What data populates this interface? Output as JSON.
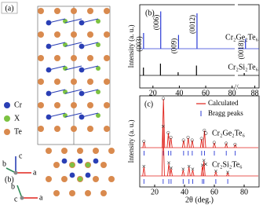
{
  "panel_a": {
    "label": "(a)",
    "legend": [
      {
        "label": "Cr",
        "color": "#2a3fb5"
      },
      {
        "label": "X",
        "color": "#7cc242"
      },
      {
        "label": "Te",
        "color": "#d98a4e"
      }
    ],
    "axes": {
      "c": "c",
      "b": "b",
      "a": "a"
    }
  },
  "panel_b_structure": {
    "label": "(b)",
    "axes": {
      "b": "b",
      "c": "c",
      "a": "a"
    }
  },
  "chart_b": {
    "type": "xrd-stack",
    "label": "(b)",
    "y_label": "Intensity (a. u.)",
    "segments": [
      {
        "xlim": [
          10,
          82
        ],
        "xticks": [
          20,
          40,
          60,
          80
        ]
      },
      {
        "xlim": [
          80,
          90
        ],
        "xticks": [
          88
        ]
      }
    ],
    "series": [
      {
        "name": "Cr₂Ge₂Te₆",
        "color": "#2b3bd6",
        "x": [
          12.9,
          25.9,
          39.4,
          53.4,
          83.6
        ],
        "values": [
          40,
          95,
          35,
          90,
          25
        ],
        "peak_labels": [
          "(003)",
          "(006)",
          "(009)",
          "(0012)",
          "(0018)"
        ]
      },
      {
        "name": "Cr₂Si₂Te₆",
        "color": "#000000",
        "x": [
          12.8,
          25.7,
          39.1,
          53.0,
          83.0
        ],
        "values": [
          20,
          30,
          8,
          25,
          6
        ]
      }
    ]
  },
  "chart_c": {
    "type": "refinement",
    "label": "(c)",
    "y_label": "Intensity (a. u.)",
    "x_label": "2θ (deg.)",
    "xlim": [
      10,
      90
    ],
    "xticks": [
      20,
      40,
      60,
      80
    ],
    "calc_label": "Calculated",
    "calc_color": "#e0231c",
    "bragg_label": "Bragg peaks",
    "bragg_color": "#2b3bd6",
    "series": [
      {
        "name": "Cr₂Ge₂Te₆",
        "marker": "○",
        "x": [
          12.9,
          25.9,
          29.2,
          30.9,
          39.4,
          42.5,
          45.2,
          51.5,
          53.4,
          60,
          68,
          74
        ],
        "values": [
          12,
          100,
          30,
          20,
          15,
          20,
          15,
          18,
          35,
          10,
          8,
          6
        ]
      },
      {
        "name": "Cr₂Si₂Te₆",
        "marker": "×",
        "x": [
          12.8,
          25.7,
          29.5,
          31,
          39.1,
          43,
          45.5,
          52,
          53,
          61,
          69
        ],
        "values": [
          18,
          100,
          25,
          15,
          12,
          18,
          12,
          20,
          30,
          8,
          6
        ]
      }
    ]
  }
}
